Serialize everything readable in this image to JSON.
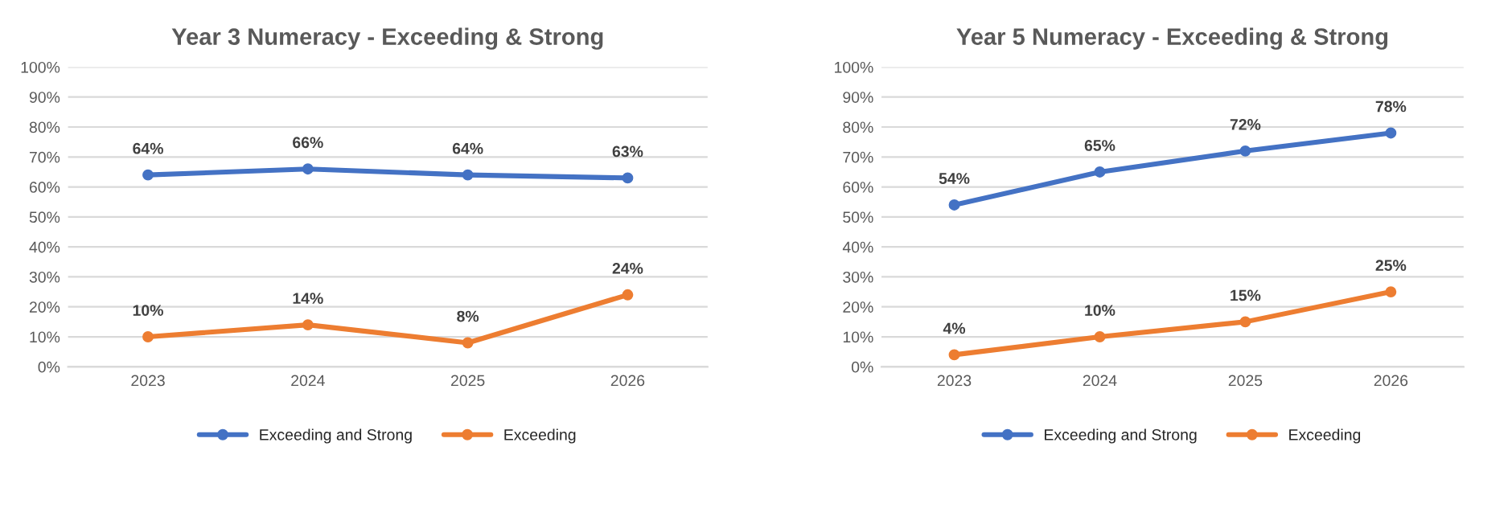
{
  "chart_data": [
    {
      "type": "line",
      "title": "Year 3 Numeracy - Exceeding & Strong",
      "categories": [
        "2023",
        "2024",
        "2025",
        "2026"
      ],
      "ylim": [
        0,
        100
      ],
      "yticks": [
        {
          "value": 0,
          "label": "0%"
        },
        {
          "value": 10,
          "label": "10%"
        },
        {
          "value": 20,
          "label": "20%"
        },
        {
          "value": 30,
          "label": "30%"
        },
        {
          "value": 40,
          "label": "40%"
        },
        {
          "value": 50,
          "label": "50%"
        },
        {
          "value": 60,
          "label": "60%"
        },
        {
          "value": 70,
          "label": "70%"
        },
        {
          "value": 80,
          "label": "80%"
        },
        {
          "value": 90,
          "label": "90%"
        },
        {
          "value": 100,
          "label": "100%"
        }
      ],
      "grid": "y",
      "legend": "bottom",
      "marker": "circle",
      "series": [
        {
          "name": "Exceeding and Strong",
          "color": "#4472c4",
          "values": [
            64,
            66,
            64,
            63
          ],
          "value_labels": [
            "64%",
            "66%",
            "64%",
            "63%"
          ]
        },
        {
          "name": "Exceeding",
          "color": "#ed7d31",
          "values": [
            10,
            14,
            8,
            24
          ],
          "value_labels": [
            "10%",
            "14%",
            "8%",
            "24%"
          ]
        }
      ]
    },
    {
      "type": "line",
      "title": "Year 5 Numeracy - Exceeding & Strong",
      "categories": [
        "2023",
        "2024",
        "2025",
        "2026"
      ],
      "ylim": [
        0,
        100
      ],
      "yticks": [
        {
          "value": 0,
          "label": "0%"
        },
        {
          "value": 10,
          "label": "10%"
        },
        {
          "value": 20,
          "label": "20%"
        },
        {
          "value": 30,
          "label": "30%"
        },
        {
          "value": 40,
          "label": "40%"
        },
        {
          "value": 50,
          "label": "50%"
        },
        {
          "value": 60,
          "label": "60%"
        },
        {
          "value": 70,
          "label": "70%"
        },
        {
          "value": 80,
          "label": "80%"
        },
        {
          "value": 90,
          "label": "90%"
        },
        {
          "value": 100,
          "label": "100%"
        }
      ],
      "grid": "y",
      "legend": "bottom",
      "marker": "circle",
      "series": [
        {
          "name": "Exceeding and Strong",
          "color": "#4472c4",
          "values": [
            54,
            65,
            72,
            78
          ],
          "value_labels": [
            "54%",
            "65%",
            "72%",
            "78%"
          ]
        },
        {
          "name": "Exceeding",
          "color": "#ed7d31",
          "values": [
            4,
            10,
            15,
            25
          ],
          "value_labels": [
            "4%",
            "10%",
            "15%",
            "25%"
          ]
        }
      ]
    }
  ]
}
